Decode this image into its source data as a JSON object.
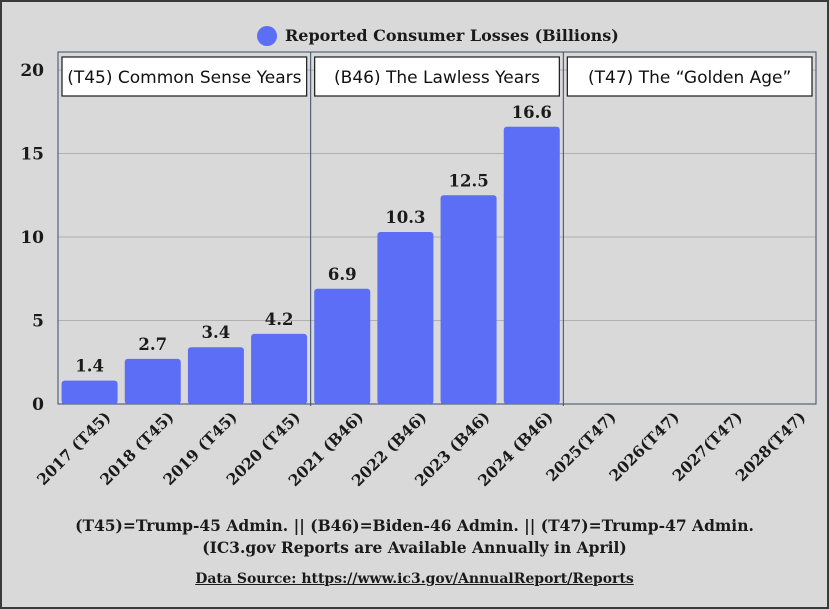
{
  "chart_data": {
    "type": "bar",
    "categories": [
      "2017 (T45)",
      "2018 (T45)",
      "2019 (T45)",
      "2020 (T45)",
      "2021 (B46)",
      "2022 (B46)",
      "2023 (B46)",
      "2024 (B46)",
      "2025(T47)",
      "2026(T47)",
      "2027(T47)",
      "2028(T47)"
    ],
    "series": [
      {
        "name": "Reported Consumer Losses (Billions)",
        "values": [
          1.4,
          2.7,
          3.4,
          4.2,
          6.9,
          10.3,
          12.5,
          16.6,
          null,
          null,
          null,
          null
        ],
        "data_labels": [
          "1.4",
          "2.7",
          "3.4",
          "4.2",
          "6.9",
          "10.3",
          "12.5",
          "16.6"
        ],
        "color": "#5b6ef5"
      }
    ],
    "ylim": [
      0,
      20
    ],
    "yticks": [
      0,
      5,
      10,
      15,
      20
    ],
    "grid": "horizontal",
    "legend_position": "top-center",
    "annotations": [
      {
        "text": "(T45) Common Sense Years",
        "categories": [
          0,
          3
        ]
      },
      {
        "text": "(B46) The Lawless Years",
        "categories": [
          4,
          7
        ]
      },
      {
        "text": "(T47) The “Golden Age”",
        "categories": [
          8,
          11
        ]
      }
    ]
  },
  "footer": {
    "line1": "(T45)=Trump-45 Admin. || (B46)=Biden-46 Admin. || (T47)=Trump-47 Admin.",
    "line2": "(IC3.gov Reports are Available Annually in April)",
    "source": "Data Source: https://www.ic3.gov/AnnualReport/Reports"
  },
  "colors": {
    "background": "#d9d9d9",
    "bar": "#5b6ef5",
    "grid": "#b0b0b0",
    "box_border": "#1a1a1a"
  }
}
